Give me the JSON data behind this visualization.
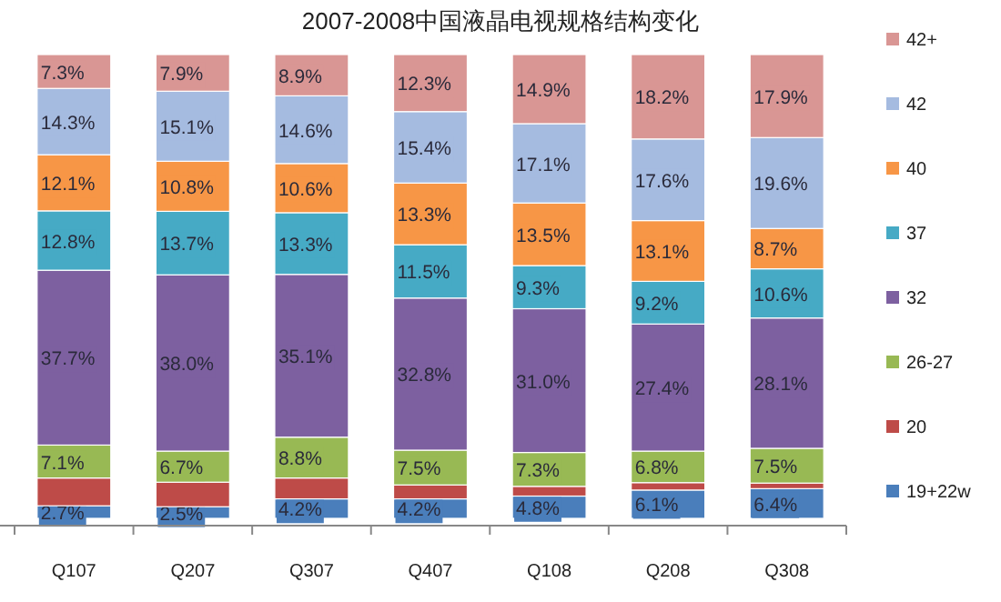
{
  "chart_data": {
    "type": "bar",
    "stacked": true,
    "title": "2007-2008中国液晶电视规格结构变化",
    "categories": [
      "Q107",
      "Q207",
      "Q307",
      "Q407",
      "Q108",
      "Q208",
      "Q308"
    ],
    "legend": "right",
    "series": [
      {
        "name": "19+22w",
        "color": "#4a7ebb",
        "values": [
          2.7,
          2.5,
          4.2,
          4.2,
          4.8,
          6.1,
          6.4
        ],
        "value_labels": [
          "2.7%",
          "2.5%",
          "4.2%",
          "4.2%",
          "4.8%",
          "6.1%",
          "6.4%"
        ]
      },
      {
        "name": "20",
        "color": "#be4b48",
        "values": [
          6.0,
          5.3,
          4.5,
          3.0,
          2.1,
          1.6,
          1.2
        ],
        "value_labels": [
          null,
          null,
          null,
          null,
          null,
          null,
          null
        ]
      },
      {
        "name": "26-27",
        "color": "#98b954",
        "values": [
          7.1,
          6.7,
          8.8,
          7.5,
          7.3,
          6.8,
          7.5
        ],
        "value_labels": [
          "7.1%",
          "6.7%",
          "8.8%",
          "7.5%",
          "7.3%",
          "6.8%",
          "7.5%"
        ]
      },
      {
        "name": "32",
        "color": "#7d60a0",
        "values": [
          37.7,
          38.0,
          35.1,
          32.8,
          31.0,
          27.4,
          28.1
        ],
        "value_labels": [
          "37.7%",
          "38.0%",
          "35.1%",
          "32.8%",
          "31.0%",
          "27.4%",
          "28.1%"
        ]
      },
      {
        "name": "37",
        "color": "#46aac5",
        "values": [
          12.8,
          13.7,
          13.3,
          11.5,
          9.3,
          9.2,
          10.6
        ],
        "value_labels": [
          "12.8%",
          "13.7%",
          "13.3%",
          "11.5%",
          "9.3%",
          "9.2%",
          "10.6%"
        ]
      },
      {
        "name": "40",
        "color": "#f79646",
        "values": [
          12.1,
          10.8,
          10.6,
          13.3,
          13.5,
          13.1,
          8.7
        ],
        "value_labels": [
          "12.1%",
          "10.8%",
          "10.6%",
          "13.3%",
          "13.5%",
          "13.1%",
          "8.7%"
        ]
      },
      {
        "name": "42",
        "color": "#a5bbe0",
        "values": [
          14.3,
          15.1,
          14.6,
          15.4,
          17.1,
          17.6,
          19.6
        ],
        "value_labels": [
          "14.3%",
          "15.1%",
          "14.6%",
          "15.4%",
          "17.1%",
          "17.6%",
          "19.6%"
        ]
      },
      {
        "name": "42+",
        "color": "#d99694",
        "values": [
          7.3,
          7.9,
          8.9,
          12.3,
          14.9,
          18.2,
          17.9
        ],
        "value_labels": [
          "7.3%",
          "7.9%",
          "8.9%",
          "12.3%",
          "14.9%",
          "18.2%",
          "17.9%"
        ]
      }
    ]
  }
}
